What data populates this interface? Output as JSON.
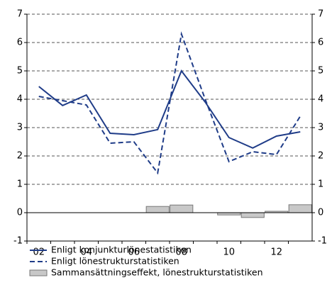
{
  "chart_data": {
    "type": "combo",
    "categories": [
      "02",
      null,
      "04",
      null,
      "06",
      null,
      "08",
      null,
      "10",
      null,
      "12",
      null
    ],
    "series": [
      {
        "name": "Enligt konjunkturlönestatistiken",
        "type": "line",
        "style": "solid",
        "color": "#1f3c88",
        "values": [
          4.45,
          3.78,
          4.15,
          2.8,
          2.75,
          2.93,
          5.0,
          3.9,
          2.65,
          2.28,
          2.7,
          2.85
        ]
      },
      {
        "name": "Enligt lönestrukturstatistiken",
        "type": "line",
        "style": "dashed",
        "color": "#1f3c88",
        "values": [
          4.1,
          3.95,
          3.8,
          2.45,
          2.5,
          1.4,
          6.3,
          4.0,
          1.8,
          2.15,
          2.05,
          3.4
        ]
      },
      {
        "name": "Sammansättningseffekt, lönestrukturstatistiken",
        "type": "bar",
        "color": "#c8c8c8",
        "values": [
          0,
          0,
          0,
          0,
          0,
          0.22,
          0.27,
          0,
          -0.08,
          -0.17,
          0.05,
          0.28
        ]
      }
    ],
    "ylim": [
      -1,
      7
    ],
    "yticks": [
      -1,
      0,
      1,
      2,
      3,
      4,
      5,
      6,
      7
    ],
    "y2lim": [
      -1,
      7
    ],
    "y2ticks": [
      -1,
      0,
      1,
      2,
      3,
      4,
      5,
      6,
      7
    ],
    "grid": true
  }
}
